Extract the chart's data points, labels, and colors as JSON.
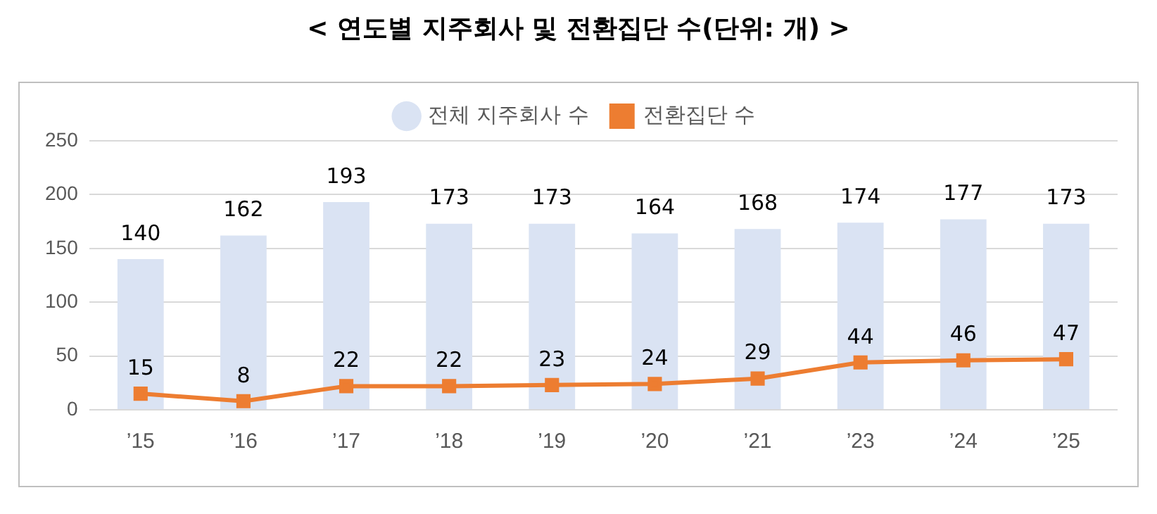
{
  "chart_data": {
    "type": "bar",
    "title": "< 연도별 지주회사 및 전환집단 수(단위: 개) >",
    "categories": [
      "’15",
      "’16",
      "’17",
      "’18",
      "’19",
      "’20",
      "’21",
      "’23",
      "’24",
      "’25"
    ],
    "series": [
      {
        "name": "전체 지주회사 수",
        "color": "#dae3f3",
        "values": [
          140,
          162,
          193,
          173,
          173,
          164,
          168,
          174,
          177,
          173
        ]
      },
      {
        "name": "전환집단 수",
        "type": "line",
        "color": "#ed7d31",
        "marker": "square",
        "line_style": "solid",
        "values": [
          15,
          8,
          22,
          22,
          23,
          24,
          29,
          44,
          46,
          47
        ]
      }
    ],
    "ylim": [
      0,
      250
    ],
    "yticks": [
      0,
      50,
      100,
      150,
      200,
      250
    ],
    "grid": "y",
    "legend": "top",
    "data_labels": true
  }
}
